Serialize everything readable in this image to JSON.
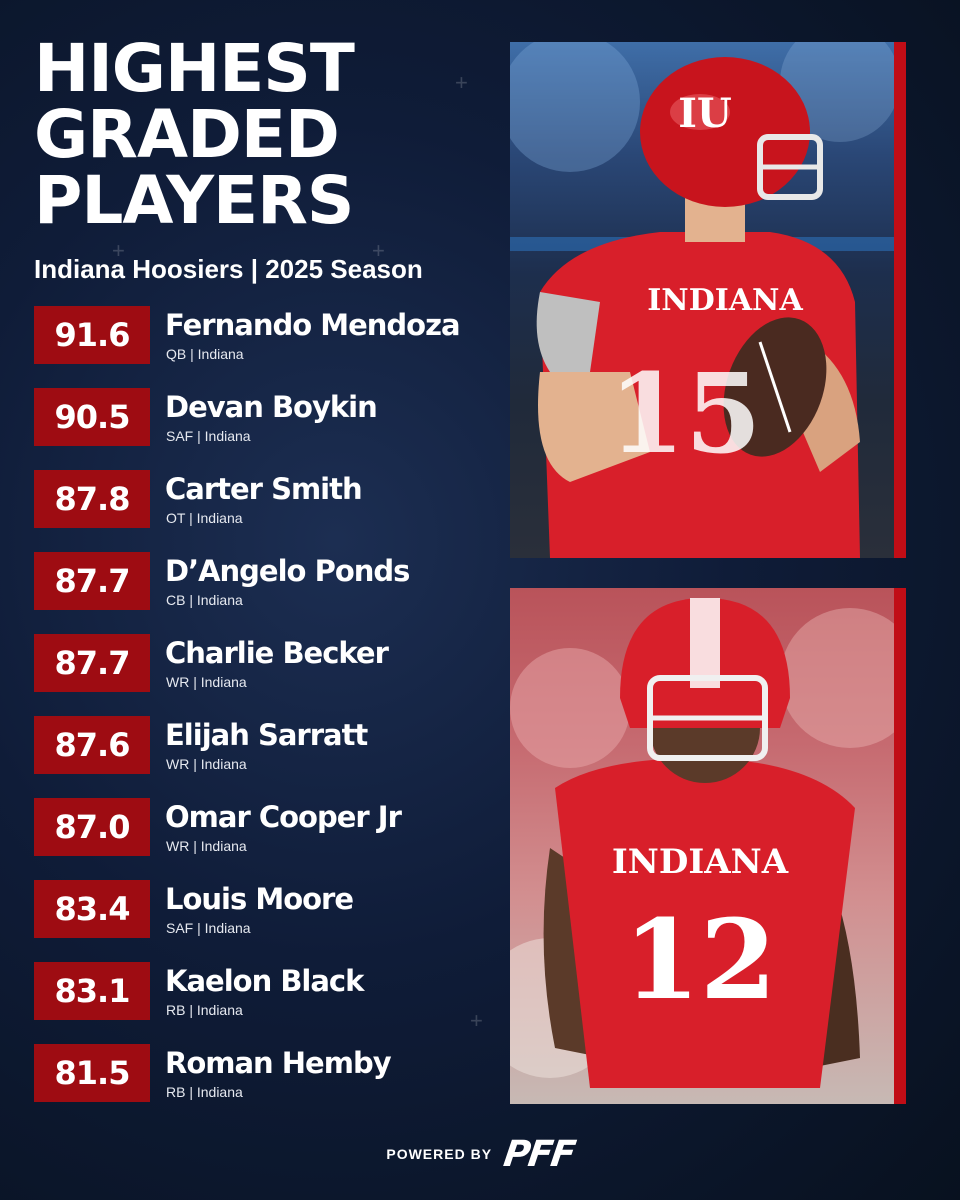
{
  "header": {
    "title_lines": [
      "HIGHEST",
      "GRADED",
      "PLAYERS"
    ],
    "subtitle": "Indiana Hoosiers | 2025 Season"
  },
  "players": [
    {
      "grade": "91.6",
      "name": "Fernando Mendoza",
      "meta": "QB | Indiana"
    },
    {
      "grade": "90.5",
      "name": "Devan Boykin",
      "meta": "SAF | Indiana"
    },
    {
      "grade": "87.8",
      "name": "Carter Smith",
      "meta": "OT | Indiana"
    },
    {
      "grade": "87.7",
      "name": "D’Angelo Ponds",
      "meta": "CB | Indiana"
    },
    {
      "grade": "87.7",
      "name": "Charlie Becker",
      "meta": "WR | Indiana"
    },
    {
      "grade": "87.6",
      "name": "Elijah Sarratt",
      "meta": "WR | Indiana"
    },
    {
      "grade": "87.0",
      "name": "Omar Cooper Jr",
      "meta": "WR | Indiana"
    },
    {
      "grade": "83.4",
      "name": "Louis Moore",
      "meta": "SAF | Indiana"
    },
    {
      "grade": "83.1",
      "name": "Kaelon Black",
      "meta": "RB | Indiana"
    },
    {
      "grade": "81.5",
      "name": "Roman Hemby",
      "meta": "RB | Indiana"
    }
  ],
  "photos": {
    "top": {
      "jersey_text": "INDIANA",
      "jersey_number": "15",
      "helmet_logo": "IU"
    },
    "bottom": {
      "jersey_text": "INDIANA",
      "jersey_number": "12"
    }
  },
  "footer": {
    "powered_by": "POWERED BY",
    "logo": "PFF"
  },
  "colors": {
    "accent_red": "#9e0c12",
    "jersey_red": "#d81f2a",
    "background": "#0f1c38"
  }
}
